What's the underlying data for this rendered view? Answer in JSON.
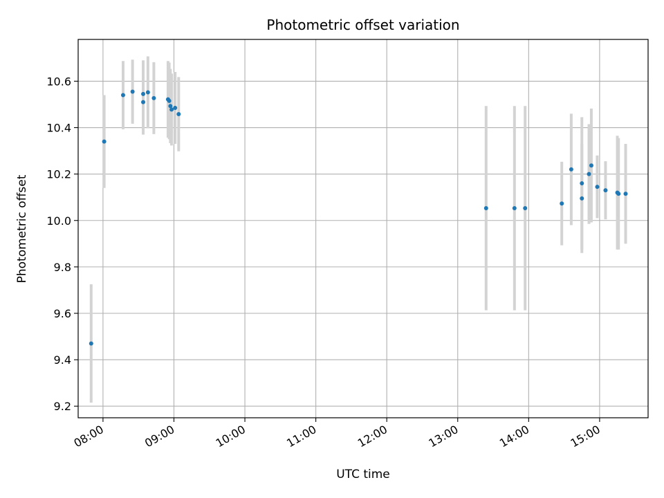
{
  "chart_data": {
    "type": "scatter",
    "title": "Photometric offset variation",
    "xlabel": "UTC time",
    "ylabel": "Photometric offset",
    "x_ticks": [
      "08:00",
      "09:00",
      "10:00",
      "11:00",
      "12:00",
      "13:00",
      "14:00",
      "15:00"
    ],
    "y_ticks": [
      "9.2",
      "9.4",
      "9.6",
      "9.8",
      "10.0",
      "10.2",
      "10.4",
      "10.6"
    ],
    "xlim": [
      "07:39",
      "15:41"
    ],
    "ylim": [
      9.15,
      10.78
    ],
    "grid": true,
    "marker_color": "#1f77b4",
    "errorbar_color": "#d3d3d3",
    "points": [
      {
        "t": "07:50",
        "y": 9.47,
        "err": 0.255
      },
      {
        "t": "08:01",
        "y": 10.34,
        "err": 0.2
      },
      {
        "t": "08:17",
        "y": 10.54,
        "err": 0.147
      },
      {
        "t": "08:25",
        "y": 10.555,
        "err": 0.138
      },
      {
        "t": "08:34",
        "y": 10.545,
        "err": 0.145
      },
      {
        "t": "08:34",
        "y": 10.51,
        "err": 0.14
      },
      {
        "t": "08:38",
        "y": 10.552,
        "err": 0.155
      },
      {
        "t": "08:43",
        "y": 10.527,
        "err": 0.155
      },
      {
        "t": "08:55",
        "y": 10.522,
        "err": 0.165
      },
      {
        "t": "08:56",
        "y": 10.515,
        "err": 0.165
      },
      {
        "t": "08:57",
        "y": 10.493,
        "err": 0.16
      },
      {
        "t": "08:58",
        "y": 10.478,
        "err": 0.155
      },
      {
        "t": "09:01",
        "y": 10.485,
        "err": 0.155
      },
      {
        "t": "09:04",
        "y": 10.458,
        "err": 0.16
      },
      {
        "t": "13:24",
        "y": 10.053,
        "err": 0.44
      },
      {
        "t": "13:48",
        "y": 10.053,
        "err": 0.44
      },
      {
        "t": "13:57",
        "y": 10.053,
        "err": 0.44
      },
      {
        "t": "14:28",
        "y": 10.073,
        "err": 0.18
      },
      {
        "t": "14:36",
        "y": 10.22,
        "err": 0.24
      },
      {
        "t": "14:45",
        "y": 10.16,
        "err": 0.285
      },
      {
        "t": "14:45",
        "y": 10.095,
        "err": 0.235
      },
      {
        "t": "14:51",
        "y": 10.2,
        "err": 0.215
      },
      {
        "t": "14:53",
        "y": 10.237,
        "err": 0.245
      },
      {
        "t": "14:58",
        "y": 10.145,
        "err": 0.135
      },
      {
        "t": "15:05",
        "y": 10.13,
        "err": 0.125
      },
      {
        "t": "15:15",
        "y": 10.12,
        "err": 0.245
      },
      {
        "t": "15:16",
        "y": 10.115,
        "err": 0.24
      },
      {
        "t": "15:22",
        "y": 10.115,
        "err": 0.215
      }
    ]
  }
}
